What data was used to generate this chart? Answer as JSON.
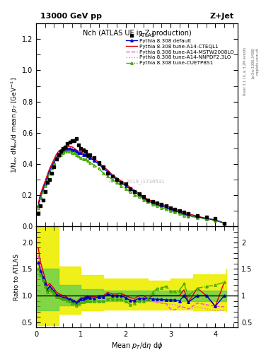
{
  "title_top": "13000 GeV pp",
  "title_right": "Z+Jet",
  "plot_title": "Nch (ATLAS UE in Z production)",
  "xlabel": "Mean $p_{T}$/d$\\eta$ d$\\phi$",
  "ylabel_main": "1/N$_{ev}$ dN$_{ev}$/d mean $p_{T}$ [GeV$^{-1}$]",
  "ylabel_ratio": "Ratio to ATLAS",
  "watermark": "ATLAS_2019_I1736531",
  "rivet_label": "Rivet 3.1.10, ≥ 3.2M events",
  "arxiv_label": "[arXiv:1306.3436]",
  "mcplots_label": "mcplots.cern.ch",
  "x_data": [
    0.05,
    0.1,
    0.15,
    0.2,
    0.25,
    0.3,
    0.35,
    0.4,
    0.45,
    0.5,
    0.55,
    0.6,
    0.65,
    0.7,
    0.75,
    0.8,
    0.85,
    0.9,
    0.95,
    1.0,
    1.05,
    1.1,
    1.15,
    1.2,
    1.3,
    1.4,
    1.5,
    1.6,
    1.7,
    1.8,
    1.9,
    2.0,
    2.1,
    2.2,
    2.3,
    2.4,
    2.5,
    2.6,
    2.7,
    2.8,
    2.9,
    3.0,
    3.1,
    3.2,
    3.3,
    3.4,
    3.6,
    3.8,
    4.0,
    4.2
  ],
  "atlas_y": [
    0.08,
    0.13,
    0.17,
    0.22,
    0.28,
    0.3,
    0.34,
    0.38,
    0.43,
    0.46,
    0.48,
    0.5,
    0.51,
    0.53,
    0.54,
    0.55,
    0.55,
    0.56,
    0.52,
    0.5,
    0.49,
    0.48,
    0.46,
    0.46,
    0.44,
    0.41,
    0.38,
    0.34,
    0.32,
    0.3,
    0.28,
    0.27,
    0.24,
    0.22,
    0.21,
    0.19,
    0.17,
    0.16,
    0.15,
    0.14,
    0.13,
    0.12,
    0.11,
    0.1,
    0.09,
    0.08,
    0.07,
    0.06,
    0.05,
    0.02
  ],
  "default_y": [
    0.13,
    0.19,
    0.23,
    0.27,
    0.31,
    0.35,
    0.38,
    0.41,
    0.44,
    0.46,
    0.47,
    0.48,
    0.49,
    0.5,
    0.5,
    0.49,
    0.49,
    0.48,
    0.47,
    0.47,
    0.46,
    0.46,
    0.45,
    0.44,
    0.42,
    0.4,
    0.37,
    0.35,
    0.32,
    0.3,
    0.28,
    0.26,
    0.24,
    0.22,
    0.2,
    0.18,
    0.16,
    0.15,
    0.14,
    0.13,
    0.12,
    0.11,
    0.1,
    0.09,
    0.08,
    0.07,
    0.06,
    0.05,
    0.04,
    0.02
  ],
  "cteql1_y": [
    0.15,
    0.21,
    0.25,
    0.29,
    0.33,
    0.37,
    0.4,
    0.43,
    0.46,
    0.48,
    0.49,
    0.5,
    0.51,
    0.51,
    0.51,
    0.51,
    0.5,
    0.49,
    0.48,
    0.48,
    0.47,
    0.47,
    0.46,
    0.45,
    0.43,
    0.41,
    0.38,
    0.36,
    0.33,
    0.31,
    0.29,
    0.27,
    0.25,
    0.23,
    0.21,
    0.19,
    0.17,
    0.16,
    0.15,
    0.14,
    0.13,
    0.12,
    0.11,
    0.1,
    0.09,
    0.08,
    0.065,
    0.05,
    0.04,
    0.02
  ],
  "mstw_y": [
    0.14,
    0.2,
    0.24,
    0.28,
    0.32,
    0.36,
    0.39,
    0.42,
    0.45,
    0.47,
    0.48,
    0.49,
    0.5,
    0.5,
    0.5,
    0.5,
    0.49,
    0.48,
    0.47,
    0.47,
    0.46,
    0.46,
    0.45,
    0.44,
    0.42,
    0.4,
    0.37,
    0.35,
    0.32,
    0.3,
    0.28,
    0.26,
    0.24,
    0.22,
    0.2,
    0.18,
    0.17,
    0.15,
    0.14,
    0.13,
    0.12,
    0.11,
    0.1,
    0.09,
    0.08,
    0.07,
    0.06,
    0.05,
    0.04,
    0.02
  ],
  "nnpdf_y": [
    0.14,
    0.2,
    0.24,
    0.28,
    0.32,
    0.36,
    0.39,
    0.42,
    0.45,
    0.47,
    0.48,
    0.49,
    0.5,
    0.5,
    0.5,
    0.5,
    0.49,
    0.48,
    0.47,
    0.47,
    0.46,
    0.46,
    0.45,
    0.44,
    0.42,
    0.4,
    0.37,
    0.35,
    0.32,
    0.3,
    0.28,
    0.26,
    0.24,
    0.22,
    0.2,
    0.18,
    0.17,
    0.15,
    0.14,
    0.13,
    0.12,
    0.11,
    0.1,
    0.09,
    0.08,
    0.07,
    0.06,
    0.05,
    0.04,
    0.02
  ],
  "cuetp_y": [
    0.12,
    0.18,
    0.22,
    0.26,
    0.3,
    0.34,
    0.37,
    0.4,
    0.43,
    0.45,
    0.46,
    0.47,
    0.48,
    0.48,
    0.48,
    0.47,
    0.47,
    0.46,
    0.45,
    0.44,
    0.43,
    0.43,
    0.42,
    0.41,
    0.39,
    0.37,
    0.34,
    0.32,
    0.3,
    0.28,
    0.26,
    0.24,
    0.22,
    0.2,
    0.19,
    0.17,
    0.16,
    0.14,
    0.13,
    0.12,
    0.11,
    0.1,
    0.09,
    0.08,
    0.07,
    0.065,
    0.055,
    0.045,
    0.035,
    0.02
  ],
  "ratio_x": [
    0.05,
    0.1,
    0.15,
    0.2,
    0.25,
    0.3,
    0.35,
    0.4,
    0.45,
    0.5,
    0.55,
    0.6,
    0.65,
    0.7,
    0.75,
    0.8,
    0.85,
    0.9,
    0.95,
    1.0,
    1.05,
    1.1,
    1.15,
    1.2,
    1.3,
    1.4,
    1.5,
    1.6,
    1.7,
    1.8,
    1.9,
    2.0,
    2.1,
    2.2,
    2.3,
    2.4,
    2.5,
    2.6,
    2.7,
    2.8,
    2.9,
    3.0,
    3.1,
    3.2,
    3.3,
    3.4,
    3.6,
    3.8,
    4.0,
    4.2
  ],
  "ratio_default": [
    1.62,
    1.46,
    1.35,
    1.23,
    1.11,
    1.17,
    1.12,
    1.08,
    1.02,
    1.0,
    0.98,
    0.96,
    0.96,
    0.94,
    0.93,
    0.89,
    0.89,
    0.86,
    0.9,
    0.94,
    0.94,
    0.96,
    0.98,
    0.96,
    0.95,
    0.98,
    0.97,
    1.03,
    1.0,
    1.0,
    1.0,
    0.96,
    0.91,
    0.91,
    0.95,
    0.95,
    0.94,
    0.94,
    0.93,
    0.93,
    0.92,
    0.92,
    0.92,
    0.9,
    1.0,
    0.88,
    1.0,
    1.0,
    0.8,
    1.0
  ],
  "ratio_cteql1": [
    1.88,
    1.62,
    1.47,
    1.32,
    1.18,
    1.23,
    1.18,
    1.13,
    1.07,
    1.04,
    1.02,
    1.0,
    1.0,
    0.96,
    0.94,
    0.93,
    0.91,
    0.88,
    0.92,
    0.96,
    0.96,
    0.98,
    1.0,
    0.98,
    0.98,
    1.0,
    1.0,
    1.06,
    1.03,
    1.03,
    1.04,
    1.0,
    0.96,
    0.95,
    1.0,
    1.0,
    0.94,
    1.0,
    1.0,
    1.0,
    1.0,
    1.0,
    1.0,
    1.0,
    1.11,
    0.88,
    1.14,
    1.0,
    0.8,
    1.25
  ],
  "ratio_mstw": [
    1.75,
    1.54,
    1.41,
    1.27,
    1.14,
    1.2,
    1.15,
    1.11,
    1.05,
    1.02,
    1.0,
    0.98,
    0.98,
    0.94,
    0.93,
    0.91,
    0.89,
    0.87,
    0.9,
    0.94,
    0.94,
    0.96,
    0.98,
    0.96,
    0.95,
    0.98,
    0.97,
    1.03,
    1.0,
    1.0,
    1.0,
    0.96,
    0.91,
    0.91,
    0.95,
    0.95,
    0.94,
    0.94,
    0.87,
    0.86,
    0.85,
    0.75,
    0.73,
    0.8,
    0.78,
    0.75,
    0.86,
    0.83,
    0.8,
    0.79
  ],
  "ratio_nnpdf": [
    1.75,
    1.54,
    1.41,
    1.27,
    1.14,
    1.2,
    1.15,
    1.11,
    1.05,
    1.02,
    1.0,
    0.98,
    0.98,
    0.94,
    0.93,
    0.91,
    0.89,
    0.87,
    0.9,
    0.94,
    0.94,
    0.96,
    0.98,
    0.96,
    0.95,
    0.98,
    0.97,
    1.03,
    1.0,
    1.0,
    1.0,
    0.96,
    0.96,
    0.95,
    0.95,
    0.95,
    0.94,
    0.88,
    0.87,
    0.86,
    0.85,
    0.84,
    0.83,
    0.8,
    0.78,
    0.75,
    0.79,
    0.75,
    0.72,
    0.72
  ],
  "ratio_cuetp": [
    1.5,
    1.38,
    1.29,
    1.18,
    1.07,
    1.13,
    1.09,
    1.05,
    0.98,
    0.98,
    0.96,
    0.94,
    0.94,
    0.91,
    0.89,
    0.86,
    0.85,
    0.82,
    0.86,
    0.88,
    0.88,
    0.9,
    0.91,
    0.89,
    0.89,
    0.9,
    0.89,
    0.94,
    0.94,
    0.93,
    0.93,
    0.89,
    0.83,
    0.86,
    0.9,
    0.89,
    0.94,
    1.06,
    1.13,
    1.15,
    1.17,
    1.08,
    1.08,
    1.1,
    1.22,
    1.0,
    1.14,
    1.17,
    1.2,
    1.25
  ],
  "band_x_yellow": [
    0.0,
    0.5,
    1.0,
    1.5,
    2.5,
    3.0,
    3.5,
    4.25
  ],
  "band_yellow_low": [
    0.44,
    0.65,
    0.72,
    0.74,
    0.74,
    0.73,
    0.72,
    0.7
  ],
  "band_yellow_high": [
    2.3,
    1.55,
    1.38,
    1.32,
    1.28,
    1.32,
    1.4,
    1.5
  ],
  "band_x_green": [
    0.0,
    0.5,
    1.0,
    1.5,
    4.25
  ],
  "band_green_low": [
    0.72,
    0.82,
    0.88,
    0.9,
    0.9
  ],
  "band_green_high": [
    1.5,
    1.2,
    1.12,
    1.1,
    1.1
  ],
  "color_atlas": "#000000",
  "color_default": "#0000cc",
  "color_cteql1": "#dd0000",
  "color_mstw": "#ff44cc",
  "color_nnpdf": "#cc88cc",
  "color_cuetp": "#44aa00",
  "color_green_band": "#55cc55",
  "color_yellow_band": "#eeee00",
  "xlim": [
    0,
    4.5
  ],
  "ylim_main": [
    0,
    1.3
  ],
  "ylim_ratio": [
    0.4,
    2.3
  ]
}
